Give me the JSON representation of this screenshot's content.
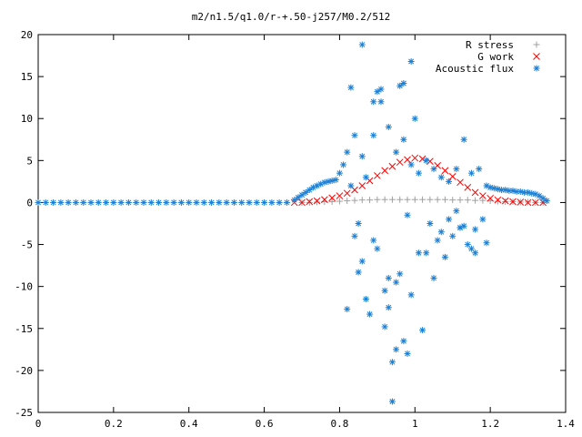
{
  "chart_data": {
    "type": "scatter",
    "title": "m2/n1.5/q1.0/r-+.50-j257/M0.2/512",
    "xlabel": "",
    "ylabel": "",
    "xlim": [
      0,
      1.4
    ],
    "ylim": [
      -25,
      20
    ],
    "xticks": [
      0,
      0.2,
      0.4,
      0.6,
      0.8,
      1.0,
      1.2,
      1.4
    ],
    "xtick_labels": [
      "0",
      "0.2",
      "0.4",
      "0.6",
      "0.8",
      "1",
      "1.2",
      "1.4"
    ],
    "yticks": [
      -25,
      -20,
      -15,
      -10,
      -5,
      0,
      5,
      10,
      15,
      20
    ],
    "ytick_labels": [
      "-25",
      "-20",
      "-15",
      "-10",
      "-5",
      "0",
      "5",
      "10",
      "15",
      "20"
    ],
    "grid": false,
    "legend_position": "top-right",
    "series": [
      {
        "name": "R stress",
        "marker": "plus",
        "color": "#a0a0a0",
        "x": [
          0.7,
          0.72,
          0.74,
          0.76,
          0.78,
          0.8,
          0.82,
          0.84,
          0.86,
          0.88,
          0.9,
          0.92,
          0.94,
          0.96,
          0.98,
          1.0,
          1.02,
          1.04,
          1.06,
          1.08,
          1.1,
          1.12,
          1.14,
          1.16,
          1.18,
          1.2,
          1.22,
          1.24,
          1.26,
          1.28,
          1.3,
          1.32,
          1.34
        ],
        "y": [
          0,
          0,
          0.05,
          0.1,
          0.1,
          0.15,
          0.2,
          0.25,
          0.3,
          0.3,
          0.35,
          0.35,
          0.35,
          0.35,
          0.35,
          0.35,
          0.35,
          0.35,
          0.35,
          0.35,
          0.3,
          0.3,
          0.3,
          0.25,
          0.25,
          0.2,
          0.15,
          0.1,
          0.1,
          0.05,
          0.05,
          0,
          0
        ]
      },
      {
        "name": "G work",
        "marker": "cross",
        "color": "#ff0000",
        "x": [
          0.68,
          0.7,
          0.72,
          0.74,
          0.76,
          0.78,
          0.8,
          0.82,
          0.84,
          0.86,
          0.88,
          0.9,
          0.92,
          0.94,
          0.96,
          0.98,
          1.0,
          1.02,
          1.04,
          1.06,
          1.08,
          1.1,
          1.12,
          1.14,
          1.16,
          1.18,
          1.2,
          1.22,
          1.24,
          1.26,
          1.28,
          1.3,
          1.32,
          1.34
        ],
        "y": [
          0,
          0,
          0.1,
          0.2,
          0.35,
          0.55,
          0.8,
          1.1,
          1.5,
          2.0,
          2.6,
          3.2,
          3.8,
          4.3,
          4.8,
          5.1,
          5.3,
          5.2,
          4.9,
          4.4,
          3.8,
          3.1,
          2.4,
          1.8,
          1.2,
          0.8,
          0.5,
          0.3,
          0.2,
          0.1,
          0.05,
          0,
          0,
          0
        ]
      },
      {
        "name": "Acoustic flux",
        "marker": "star",
        "color": "#1a7fd4",
        "x": [
          0.0,
          0.02,
          0.04,
          0.06,
          0.08,
          0.1,
          0.12,
          0.14,
          0.16,
          0.18,
          0.2,
          0.22,
          0.24,
          0.26,
          0.28,
          0.3,
          0.32,
          0.34,
          0.36,
          0.38,
          0.4,
          0.42,
          0.44,
          0.46,
          0.48,
          0.5,
          0.52,
          0.54,
          0.56,
          0.58,
          0.6,
          0.62,
          0.64,
          0.66,
          0.68,
          0.69,
          0.7,
          0.71,
          0.72,
          0.73,
          0.74,
          0.75,
          0.76,
          0.77,
          0.78,
          0.79,
          0.8,
          0.82,
          0.84,
          0.86,
          0.81,
          0.83,
          0.85,
          0.87,
          0.89,
          0.91,
          0.93,
          0.95,
          0.97,
          0.99,
          1.01,
          1.03,
          1.05,
          1.07,
          1.09,
          1.11,
          1.13,
          1.15,
          1.17,
          1.19,
          1.2,
          1.21,
          1.22,
          1.23,
          1.24,
          1.25,
          1.26,
          1.27,
          1.28,
          1.29,
          1.3,
          1.31,
          1.32,
          1.33,
          1.34,
          1.35,
          0.86,
          0.94,
          0.83,
          0.89,
          0.9,
          0.91,
          0.97,
          0.99,
          1.0,
          0.96,
          0.93,
          0.88,
          0.85,
          0.87,
          0.92,
          0.95,
          0.98,
          1.02,
          1.05,
          1.08,
          1.1,
          1.12,
          1.14,
          1.16,
          1.18,
          0.84,
          0.82,
          0.86,
          0.9,
          0.93,
          0.96,
          0.99,
          1.03,
          1.06,
          1.09,
          1.12,
          1.15,
          0.94,
          0.97,
          0.92,
          0.89,
          0.95,
          0.98,
          1.01,
          1.04,
          1.07,
          1.11,
          1.13,
          1.16,
          1.19
        ],
        "y": [
          0,
          0,
          0,
          0,
          0,
          0,
          0,
          0,
          0,
          0,
          0,
          0,
          0,
          0,
          0,
          0,
          0,
          0,
          0,
          0,
          0,
          0,
          0,
          0,
          0,
          0,
          0,
          0,
          0,
          0,
          0,
          0,
          0,
          0,
          0.3,
          0.6,
          0.9,
          1.2,
          1.5,
          1.8,
          2.0,
          2.2,
          2.4,
          2.5,
          2.6,
          2.7,
          3.5,
          6.0,
          8.0,
          5.5,
          4.5,
          2.0,
          -2.5,
          3.0,
          8.0,
          12.0,
          9.0,
          6.0,
          7.5,
          4.5,
          3.5,
          5.0,
          4.0,
          3.0,
          2.5,
          4.0,
          7.5,
          3.5,
          4.0,
          2.0,
          1.8,
          1.7,
          1.6,
          1.5,
          1.5,
          1.4,
          1.4,
          1.3,
          1.3,
          1.2,
          1.2,
          1.1,
          1.0,
          0.8,
          0.5,
          0.2,
          18.8,
          -23.7,
          13.7,
          12.0,
          13.2,
          13.5,
          14.2,
          16.8,
          10.0,
          13.9,
          -12.5,
          -13.3,
          -8.3,
          -11.5,
          -14.8,
          -17.5,
          -18.0,
          -15.2,
          -9.0,
          -6.5,
          -4.0,
          -3.0,
          -5.0,
          -6.0,
          -2.0,
          -4.0,
          -12.7,
          -7.0,
          -5.5,
          -9.0,
          -8.5,
          -11.0,
          -6.0,
          -4.5,
          -2.0,
          -3.0,
          -5.5,
          -19.0,
          -16.5,
          -10.5,
          -4.5,
          -9.5,
          -1.5,
          -6.0,
          -2.5,
          -3.5,
          -1.0,
          -2.8,
          -3.2,
          -4.8
        ]
      }
    ]
  }
}
